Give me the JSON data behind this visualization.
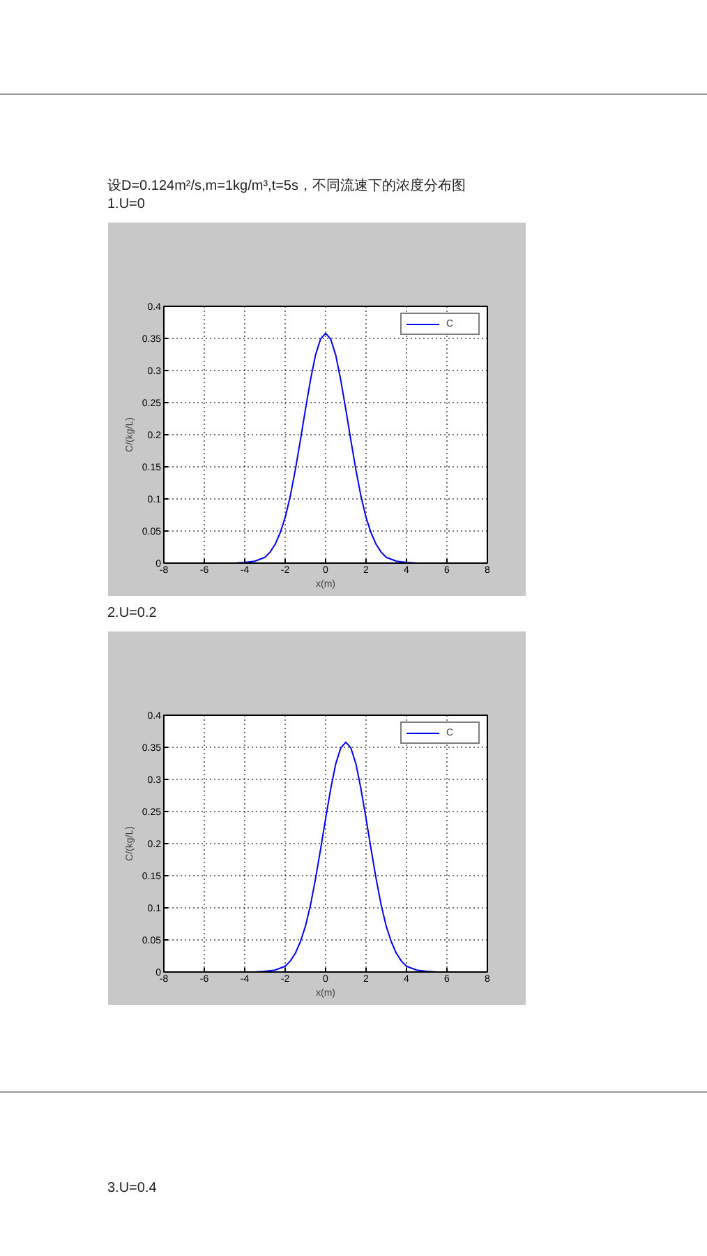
{
  "chart_data": [
    {
      "type": "line",
      "title": "设D=0.124m²/s,m=1kg/m³,t=5s，不同流速下的浓度分布图",
      "subtitle": "1.U=0",
      "xlabel": "x(m)",
      "ylabel": "C/(kg/L)",
      "x": [
        -8,
        -4.5,
        -4,
        -3.5,
        -3,
        -2.75,
        -2.5,
        -2.25,
        -2,
        -1.75,
        -1.5,
        -1.25,
        -1,
        -0.75,
        -0.5,
        -0.25,
        0,
        0.25,
        0.5,
        0.75,
        1,
        1.25,
        1.5,
        1.75,
        2,
        2.25,
        2.5,
        2.75,
        3,
        3.5,
        4,
        4.5,
        8
      ],
      "series": [
        {
          "name": "C",
          "color": "#0000ff",
          "values": [
            0,
            0,
            0.001,
            0.003,
            0.009,
            0.017,
            0.029,
            0.047,
            0.071,
            0.104,
            0.145,
            0.191,
            0.239,
            0.285,
            0.324,
            0.349,
            0.358,
            0.349,
            0.324,
            0.285,
            0.239,
            0.191,
            0.145,
            0.104,
            0.071,
            0.047,
            0.029,
            0.017,
            0.009,
            0.003,
            0.001,
            0,
            0
          ]
        }
      ],
      "xlim": [
        -8,
        8
      ],
      "xticks": [
        -8,
        -6,
        -4,
        -2,
        0,
        2,
        4,
        6,
        8
      ],
      "ylim": [
        0,
        0.4
      ],
      "yticks": [
        0,
        0.05,
        0.1,
        0.15,
        0.2,
        0.25,
        0.3,
        0.35,
        0.4
      ],
      "grid": true,
      "legend": "top right",
      "line_style": "solid"
    },
    {
      "type": "line",
      "subtitle": "2.U=0.2",
      "xlabel": "x(m)",
      "ylabel": "C/(kg/L)",
      "x": [
        -8,
        -3.5,
        -3,
        -2.5,
        -2,
        -1.75,
        -1.5,
        -1.25,
        -1,
        -0.75,
        -0.5,
        -0.25,
        0,
        0.25,
        0.5,
        0.75,
        1,
        1.25,
        1.5,
        1.75,
        2,
        2.25,
        2.5,
        2.75,
        3,
        3.25,
        3.5,
        3.75,
        4,
        4.5,
        5,
        5.5,
        8
      ],
      "series": [
        {
          "name": "C",
          "color": "#0000ff",
          "values": [
            0,
            0,
            0.001,
            0.003,
            0.009,
            0.017,
            0.029,
            0.047,
            0.071,
            0.104,
            0.145,
            0.191,
            0.239,
            0.285,
            0.324,
            0.349,
            0.358,
            0.349,
            0.324,
            0.285,
            0.239,
            0.191,
            0.145,
            0.104,
            0.071,
            0.047,
            0.029,
            0.017,
            0.009,
            0.003,
            0.001,
            0,
            0
          ]
        }
      ],
      "xlim": [
        -8,
        8
      ],
      "xticks": [
        -8,
        -6,
        -4,
        -2,
        0,
        2,
        4,
        6,
        8
      ],
      "ylim": [
        0,
        0.4
      ],
      "yticks": [
        0,
        0.05,
        0.1,
        0.15,
        0.2,
        0.25,
        0.3,
        0.35,
        0.4
      ],
      "grid": true,
      "legend": "top right",
      "line_style": "solid",
      "annotations": [
        "3.U=0.4"
      ]
    }
  ]
}
